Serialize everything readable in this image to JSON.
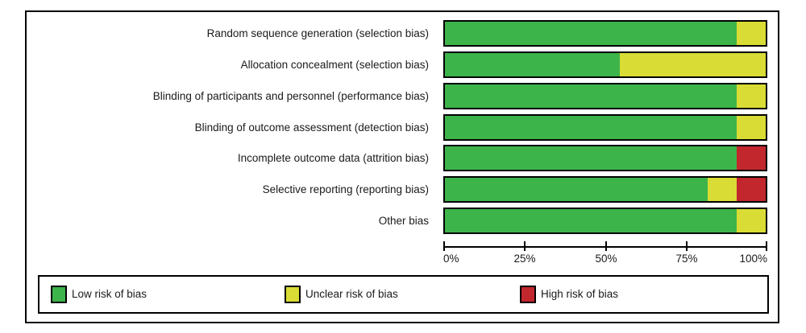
{
  "chart_data": {
    "type": "bar",
    "stacked": true,
    "orientation": "horizontal",
    "title": "",
    "categories": [
      "Random sequence generation (selection bias)",
      "Allocation concealment (selection bias)",
      "Blinding of participants and personnel (performance bias)",
      "Blinding of outcome assessment (detection bias)",
      "Incomplete outcome data (attrition bias)",
      "Selective reporting (reporting bias)",
      "Other bias"
    ],
    "series": [
      {
        "name": "Low risk of bias",
        "color": "#3CB44A",
        "values": [
          90.9,
          54.5,
          90.9,
          90.9,
          90.9,
          81.8,
          90.9
        ]
      },
      {
        "name": "Unclear risk of bias",
        "color": "#D9DC35",
        "values": [
          9.1,
          45.5,
          9.1,
          9.1,
          0,
          9.1,
          9.1
        ]
      },
      {
        "name": "High risk of bias",
        "color": "#C1272D",
        "values": [
          0,
          0,
          0,
          0,
          9.1,
          9.1,
          0
        ]
      }
    ],
    "x_axis": {
      "tick_labels": [
        "0%",
        "25%",
        "50%",
        "75%",
        "100%"
      ],
      "range": [
        0,
        100
      ],
      "grid": false
    },
    "legend": {
      "position": "bottom"
    }
  }
}
